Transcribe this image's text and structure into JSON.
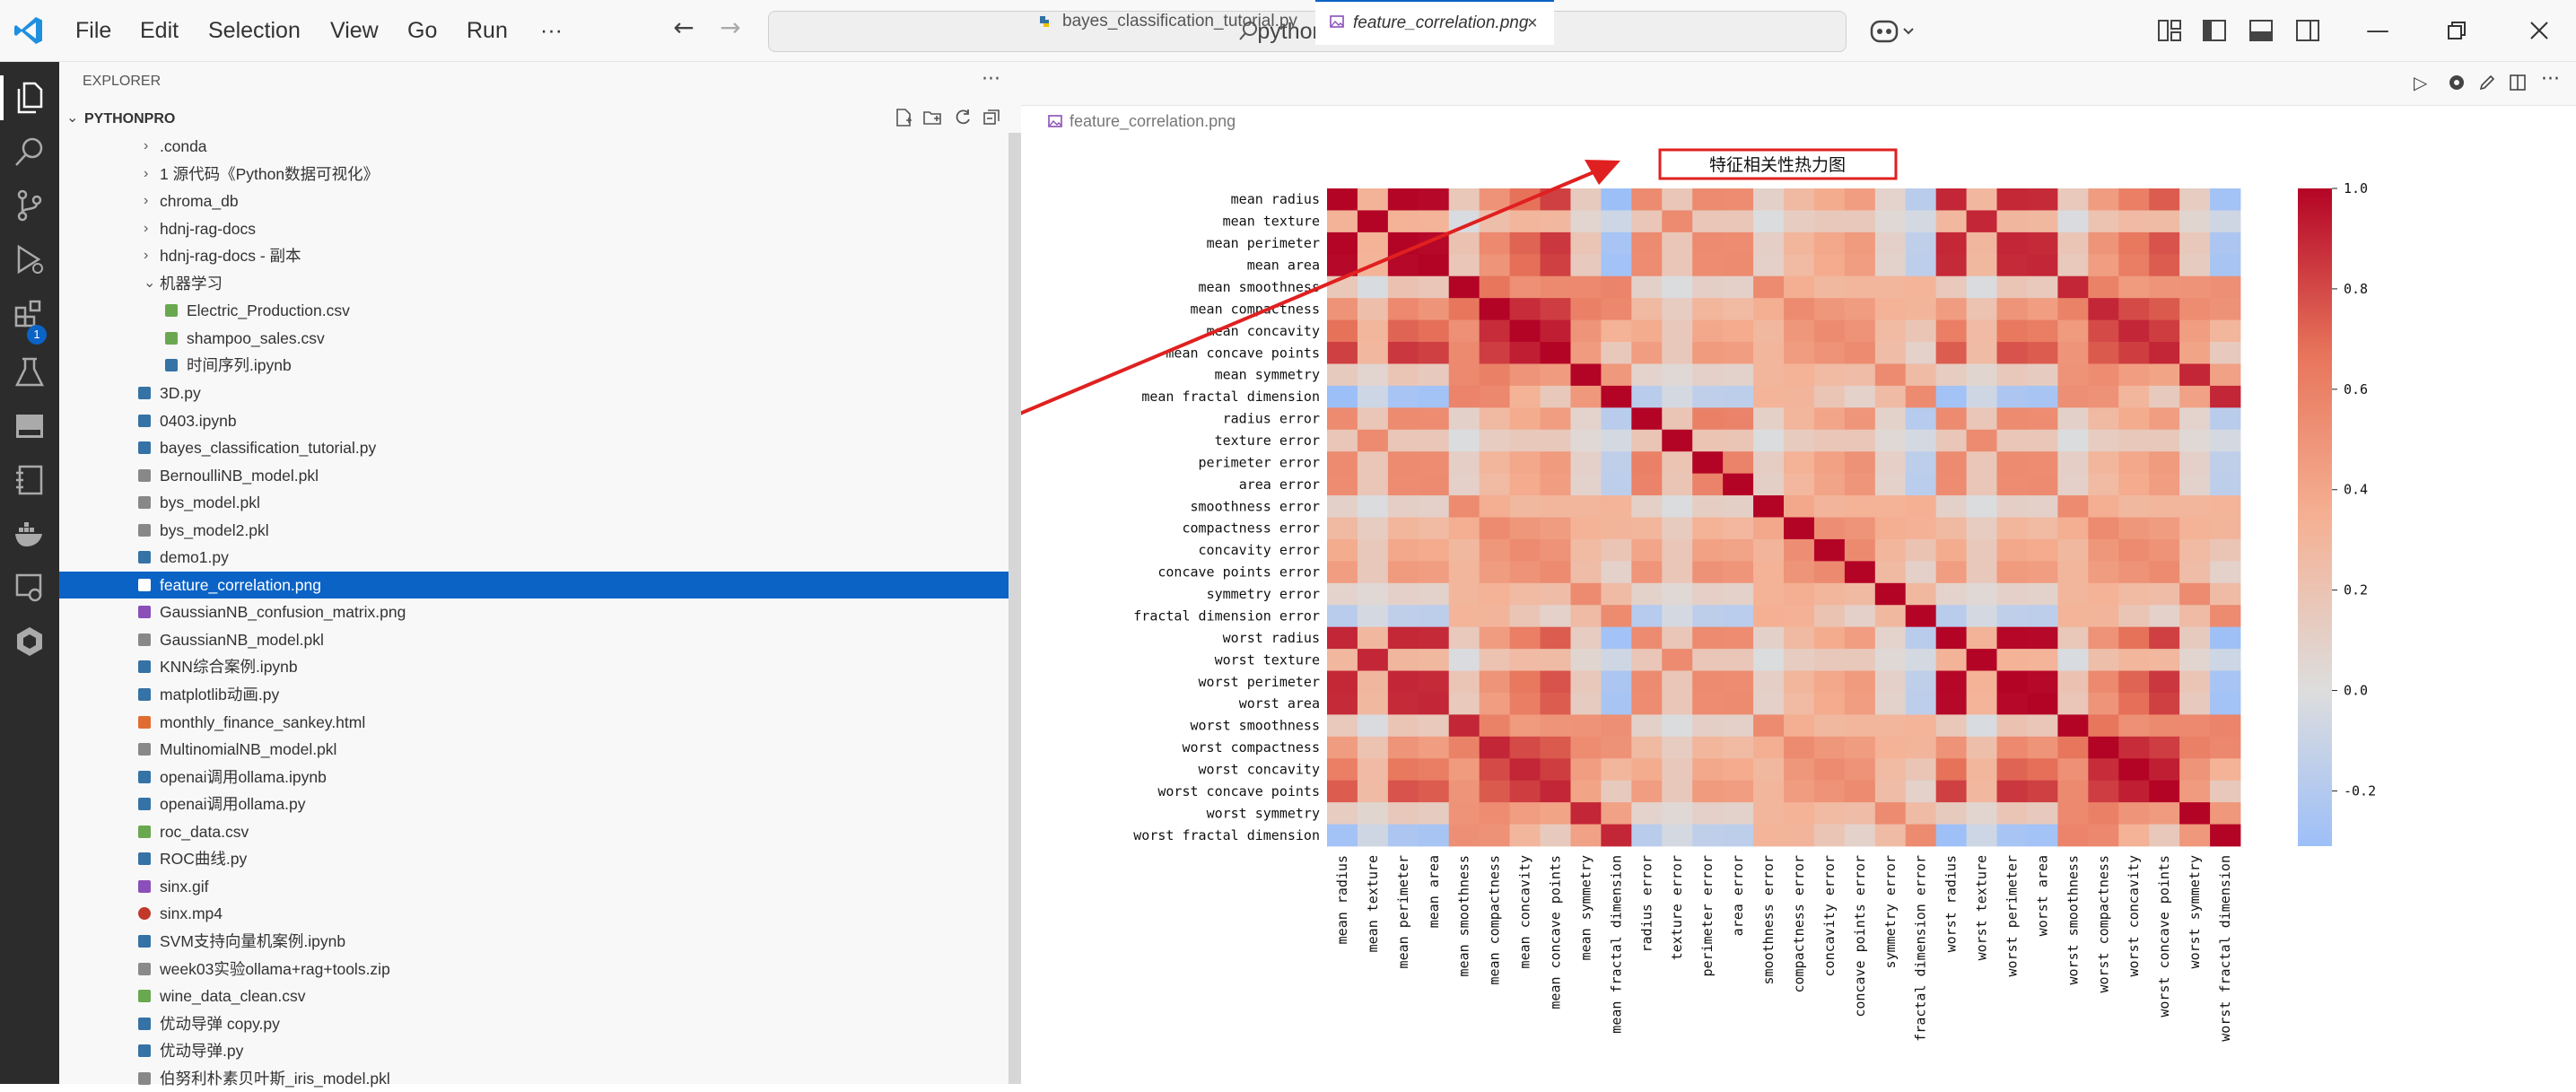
{
  "titlebar": {
    "menus": [
      "File",
      "Edit",
      "Selection",
      "View",
      "Go",
      "Run",
      "···"
    ],
    "search_text": "pythonpro"
  },
  "sidebar": {
    "header": "EXPLORER",
    "project": "PYTHONPRO",
    "badge": "1",
    "items": [
      {
        "label": ".conda",
        "type": "folder",
        "expanded": false,
        "depth": 0
      },
      {
        "label": "1 源代码《Python数据可视化》",
        "type": "folder",
        "expanded": false,
        "depth": 0
      },
      {
        "label": "chroma_db",
        "type": "folder",
        "expanded": false,
        "depth": 0
      },
      {
        "label": "hdnj-rag-docs",
        "type": "folder",
        "expanded": false,
        "depth": 0
      },
      {
        "label": "hdnj-rag-docs - 副本",
        "type": "folder",
        "expanded": false,
        "depth": 0
      },
      {
        "label": "机器学习",
        "type": "folder",
        "expanded": true,
        "depth": 0
      },
      {
        "label": "Electric_Production.csv",
        "type": "csv",
        "depth": 1
      },
      {
        "label": "shampoo_sales.csv",
        "type": "csv",
        "depth": 1
      },
      {
        "label": "时间序列.ipynb",
        "type": "ipynb",
        "depth": 1
      },
      {
        "label": "3D.py",
        "type": "py",
        "depth": 0
      },
      {
        "label": "0403.ipynb",
        "type": "ipynb",
        "depth": 0
      },
      {
        "label": "bayes_classification_tutorial.py",
        "type": "py",
        "depth": 0
      },
      {
        "label": "BernoulliNB_model.pkl",
        "type": "pkl",
        "depth": 0
      },
      {
        "label": "bys_model.pkl",
        "type": "pkl",
        "depth": 0
      },
      {
        "label": "bys_model2.pkl",
        "type": "pkl",
        "depth": 0
      },
      {
        "label": "demo1.py",
        "type": "py",
        "depth": 0
      },
      {
        "label": "feature_correlation.png",
        "type": "png",
        "depth": 0,
        "selected": true
      },
      {
        "label": "GaussianNB_confusion_matrix.png",
        "type": "png",
        "depth": 0
      },
      {
        "label": "GaussianNB_model.pkl",
        "type": "pkl",
        "depth": 0
      },
      {
        "label": "KNN综合案例.ipynb",
        "type": "ipynb",
        "depth": 0
      },
      {
        "label": "matplotlib动画.py",
        "type": "py",
        "depth": 0
      },
      {
        "label": "monthly_finance_sankey.html",
        "type": "html",
        "depth": 0
      },
      {
        "label": "MultinomialNB_model.pkl",
        "type": "pkl",
        "depth": 0
      },
      {
        "label": "openai调用ollama.ipynb",
        "type": "ipynb",
        "depth": 0
      },
      {
        "label": "openai调用ollama.py",
        "type": "py",
        "depth": 0
      },
      {
        "label": "roc_data.csv",
        "type": "csv",
        "depth": 0
      },
      {
        "label": "ROC曲线.py",
        "type": "py",
        "depth": 0
      },
      {
        "label": "sinx.gif",
        "type": "gif",
        "depth": 0
      },
      {
        "label": "sinx.mp4",
        "type": "mp4",
        "depth": 0
      },
      {
        "label": "SVM支持向量机案例.ipynb",
        "type": "ipynb",
        "depth": 0
      },
      {
        "label": "week03实验ollama+rag+tools.zip",
        "type": "zip",
        "depth": 0
      },
      {
        "label": "wine_data_clean.csv",
        "type": "csv",
        "depth": 0
      },
      {
        "label": "优动导弹 copy.py",
        "type": "py",
        "depth": 0
      },
      {
        "label": "优动导弹.py",
        "type": "py",
        "depth": 0
      },
      {
        "label": "伯努利朴素贝叶斯_iris_model.pkl",
        "type": "pkl",
        "depth": 0
      }
    ]
  },
  "editor": {
    "tabs": [
      {
        "label": "bayes_classification_tutorial.py",
        "active": false
      },
      {
        "label": "feature_correlation.png",
        "active": true
      }
    ],
    "breadcrumb": "feature_correlation.png"
  },
  "colors": {
    "accent": "#0b63c6",
    "annotation_red": "#e02020",
    "activity_bar": "#2c2c2c"
  },
  "chart_data": {
    "type": "heatmap",
    "title": "特征相关性热力图",
    "features": [
      "mean radius",
      "mean texture",
      "mean perimeter",
      "mean area",
      "mean smoothness",
      "mean compactness",
      "mean concavity",
      "mean concave points",
      "mean symmetry",
      "mean fractal dimension",
      "radius error",
      "texture error",
      "perimeter error",
      "area error",
      "smoothness error",
      "compactness error",
      "concavity error",
      "concave points error",
      "symmetry error",
      "fractal dimension error",
      "worst radius",
      "worst texture",
      "worst perimeter",
      "worst area",
      "worst smoothness",
      "worst compactness",
      "worst concavity",
      "worst concave points",
      "worst symmetry",
      "worst fractal dimension"
    ],
    "mean_features": [
      [
        1.0,
        0.324,
        0.998,
        0.987,
        0.171,
        0.506,
        0.677,
        0.823,
        0.148,
        -0.312
      ],
      [
        0.324,
        1.0,
        0.33,
        0.321,
        -0.023,
        0.237,
        0.302,
        0.293,
        0.071,
        -0.076
      ],
      [
        0.998,
        0.33,
        1.0,
        0.987,
        0.207,
        0.557,
        0.716,
        0.851,
        0.183,
        -0.261
      ],
      [
        0.987,
        0.321,
        0.987,
        1.0,
        0.177,
        0.499,
        0.686,
        0.823,
        0.151,
        -0.283
      ],
      [
        0.171,
        -0.023,
        0.207,
        0.177,
        1.0,
        0.659,
        0.522,
        0.554,
        0.558,
        0.585
      ],
      [
        0.506,
        0.237,
        0.557,
        0.499,
        0.659,
        1.0,
        0.883,
        0.831,
        0.603,
        0.565
      ],
      [
        0.677,
        0.302,
        0.716,
        0.686,
        0.522,
        0.883,
        1.0,
        0.921,
        0.501,
        0.337
      ],
      [
        0.823,
        0.293,
        0.851,
        0.823,
        0.554,
        0.831,
        0.921,
        1.0,
        0.462,
        0.167
      ],
      [
        0.148,
        0.071,
        0.183,
        0.151,
        0.558,
        0.603,
        0.501,
        0.462,
        1.0,
        0.48
      ],
      [
        -0.312,
        -0.076,
        -0.261,
        -0.283,
        0.585,
        0.565,
        0.337,
        0.167,
        0.48,
        1.0
      ]
    ],
    "colorbar_ticks": [
      1.0,
      0.8,
      0.6,
      0.4,
      0.2,
      0.0,
      -0.2
    ],
    "vmin": -0.31,
    "vmax": 1.0,
    "colormap": "coolwarm"
  }
}
